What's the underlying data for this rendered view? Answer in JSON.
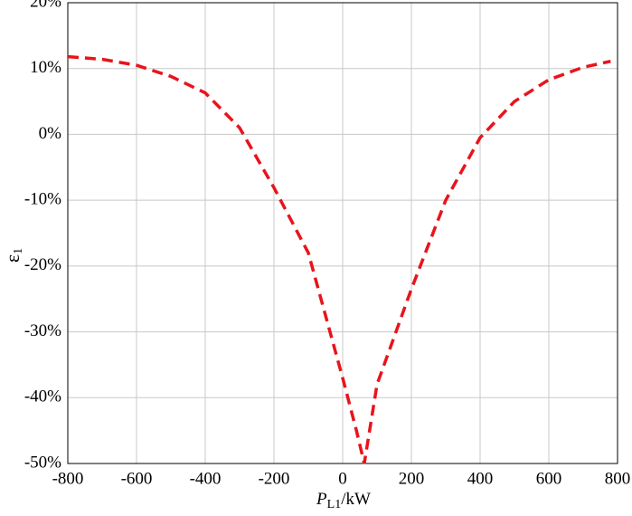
{
  "chart_data": {
    "type": "line",
    "x_label": {
      "main": "P",
      "sub": "L1",
      "unit": "/kW"
    },
    "y_label": {
      "main": "ε",
      "sub": "1"
    },
    "xlim": [
      -800,
      800
    ],
    "xticks": [
      -800,
      -600,
      -400,
      -200,
      0,
      200,
      400,
      600,
      800
    ],
    "ylim": [
      -50,
      20
    ],
    "yticks": [
      {
        "value": -50,
        "label": "-50%"
      },
      {
        "value": -40,
        "label": "-40%"
      },
      {
        "value": -30,
        "label": "-30%"
      },
      {
        "value": -20,
        "label": "-20%"
      },
      {
        "value": -10,
        "label": "-10%"
      },
      {
        "value": 0,
        "label": "0%"
      },
      {
        "value": 10,
        "label": "10%"
      },
      {
        "value": 20,
        "label": "20%"
      }
    ],
    "grid": true,
    "series": [
      {
        "color": "#e8141c",
        "dashed": true,
        "x": [
          -800,
          -700,
          -600,
          -500,
          -400,
          -300,
          -200,
          -100,
          0,
          40,
          63,
          100,
          200,
          300,
          400,
          500,
          600,
          700,
          780
        ],
        "values": [
          11.8,
          11.4,
          10.5,
          8.8,
          6.3,
          1.0,
          -8.1,
          -18.0,
          -37.0,
          -45.0,
          -50.0,
          -38.0,
          -23.5,
          -10.0,
          -0.5,
          5.0,
          8.3,
          10.2,
          11.1
        ]
      }
    ]
  }
}
